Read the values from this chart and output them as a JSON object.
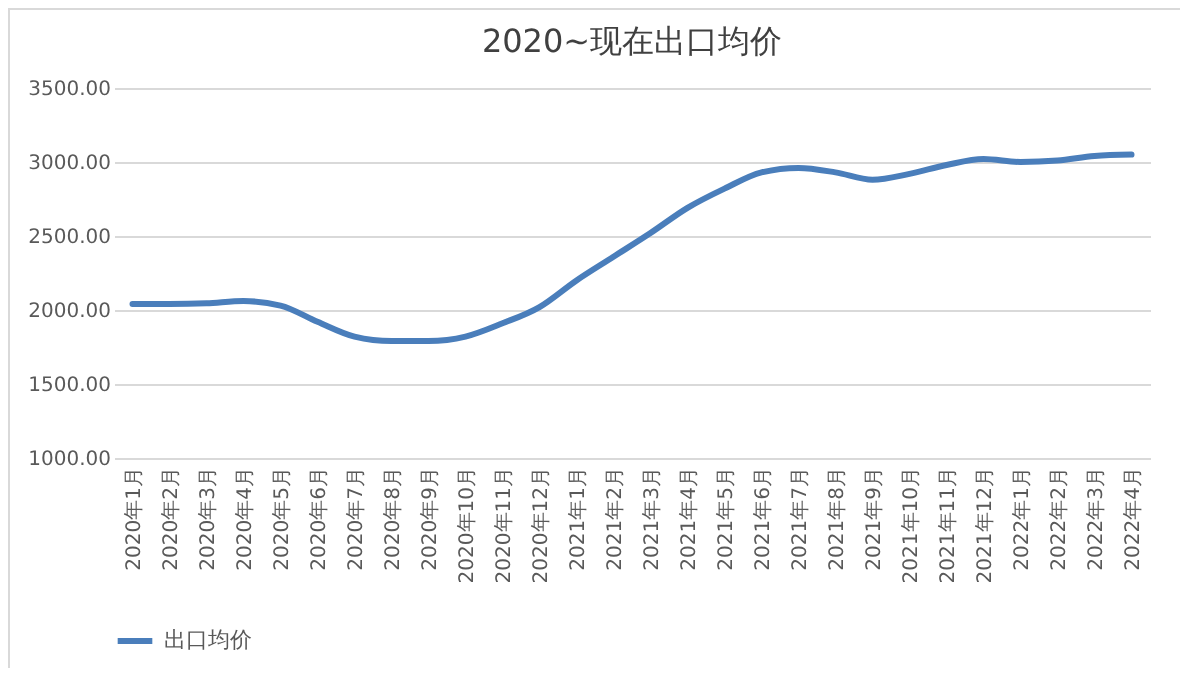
{
  "chart_data": {
    "type": "line",
    "title": "2020~现在出口均价",
    "categories": [
      "2020年1月",
      "2020年2月",
      "2020年3月",
      "2020年4月",
      "2020年5月",
      "2020年6月",
      "2020年7月",
      "2020年8月",
      "2020年9月",
      "2020年10月",
      "2020年11月",
      "2020年12月",
      "2021年1月",
      "2021年2月",
      "2021年3月",
      "2021年4月",
      "2021年5月",
      "2021年6月",
      "2021年7月",
      "2021年8月",
      "2021年9月",
      "2021年10月",
      "2021年11月",
      "2021年12月",
      "2022年1月",
      "2022年2月",
      "2022年3月",
      "2022年4月"
    ],
    "series": [
      {
        "name": "出口均价",
        "color": "#4a7ebb",
        "values": [
          2040,
          2040,
          2045,
          2060,
          2030,
          1920,
          1820,
          1790,
          1790,
          1820,
          1910,
          2020,
          2200,
          2360,
          2520,
          2690,
          2820,
          2930,
          2960,
          2930,
          2880,
          2920,
          2980,
          3020,
          3000,
          3010,
          3040,
          3050
        ]
      }
    ],
    "ylim": [
      1000,
      3500
    ],
    "yticks": [
      {
        "value": 1000,
        "label": "1000.00"
      },
      {
        "value": 1500,
        "label": "1500.00"
      },
      {
        "value": 2000,
        "label": "2000.00"
      },
      {
        "value": 2500,
        "label": "2500.00"
      },
      {
        "value": 3000,
        "label": "3000.00"
      },
      {
        "value": 3500,
        "label": "3500.00"
      }
    ],
    "grid": "y",
    "legend": "bottom",
    "marker": "none",
    "line_style": "solid"
  }
}
